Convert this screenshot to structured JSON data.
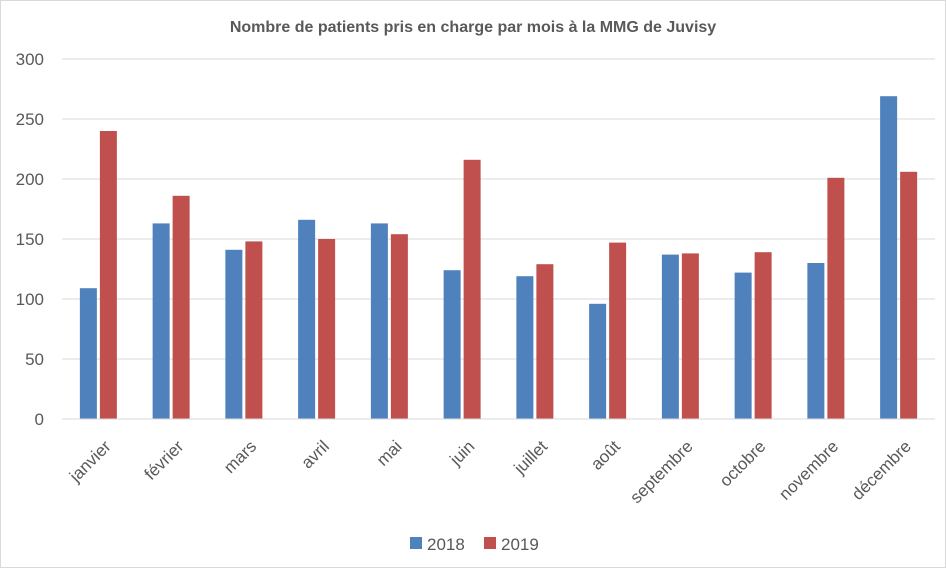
{
  "chart_data": {
    "type": "bar",
    "title": "Nombre de patients pris en charge par mois à la MMG de Juvisy",
    "xlabel": "",
    "ylabel": "",
    "ylim": [
      0,
      300
    ],
    "yticks": [
      0,
      50,
      100,
      150,
      200,
      250,
      300
    ],
    "grid": true,
    "legend_position": "bottom",
    "categories": [
      "janvier",
      "février",
      "mars",
      "avril",
      "mai",
      "juin",
      "juillet",
      "août",
      "septembre",
      "octobre",
      "novembre",
      "décembre"
    ],
    "series": [
      {
        "name": "2018",
        "color": "#4f81bd",
        "values": [
          109,
          163,
          141,
          166,
          163,
          124,
          119,
          96,
          137,
          122,
          130,
          269
        ]
      },
      {
        "name": "2019",
        "color": "#c0504d",
        "values": [
          240,
          186,
          148,
          150,
          154,
          216,
          129,
          147,
          138,
          139,
          201,
          206
        ]
      }
    ]
  }
}
